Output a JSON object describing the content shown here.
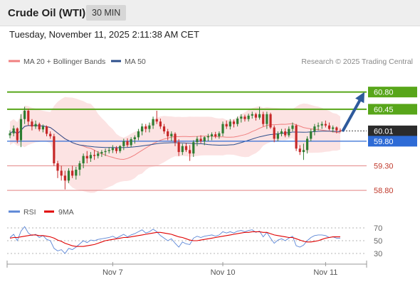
{
  "header": {
    "title": "Crude Oil (WTI)",
    "timeframe": "30 MIN"
  },
  "date_line": "Tuesday, November 11, 2025 2:11:38 AM CET",
  "legend": {
    "ma20_label": "MA 20 + Bollinger Bands",
    "ma50_label": "MA 50",
    "ma20_color": "#f08080",
    "ma50_color": "#2c4f8c",
    "credit": "Research © 2025 Trading Central"
  },
  "rsi_legend": {
    "rsi_label": "RSI",
    "ma_label": "9MA",
    "rsi_color": "#5b86d6",
    "ma_color": "#e00000"
  },
  "chart_data": [
    {
      "type": "candlestick",
      "ylim": [
        58.6,
        61.3
      ],
      "x_tick_labels": [
        "Nov 7",
        "Nov 10",
        "Nov 11"
      ],
      "last_price": 60.01,
      "colors": {
        "up": "#2e7d32",
        "down": "#c62828",
        "band": "#fcdede",
        "ma20": "#f08080",
        "ma50": "#2c4f8c"
      },
      "levels": [
        {
          "value": 60.8,
          "label": "60.80",
          "style": "resistance",
          "color": "#58a61a"
        },
        {
          "value": 60.45,
          "label": "60.45",
          "style": "resistance",
          "color": "#58a61a"
        },
        {
          "value": 60.01,
          "label": "60.01",
          "style": "last",
          "color": "#2b2b2b"
        },
        {
          "value": 59.8,
          "label": "59.80",
          "style": "pivot",
          "color": "#2e6bd6"
        },
        {
          "value": 59.3,
          "label": "59.30",
          "style": "support",
          "color": "#e89a9a"
        },
        {
          "value": 58.8,
          "label": "58.80",
          "style": "support",
          "color": "#e89a9a"
        }
      ],
      "arrow": {
        "from": 60.02,
        "to": 60.8,
        "color": "#2e5a9c"
      },
      "candles": [
        [
          59.92,
          60.02,
          59.86,
          59.96
        ],
        [
          59.96,
          60.12,
          59.9,
          60.06
        ],
        [
          60.06,
          60.08,
          59.76,
          59.82
        ],
        [
          59.82,
          60.35,
          59.68,
          60.25
        ],
        [
          60.25,
          60.5,
          60.15,
          60.42
        ],
        [
          60.42,
          60.46,
          60.12,
          60.2
        ],
        [
          60.2,
          60.25,
          60.02,
          60.1
        ],
        [
          60.1,
          60.22,
          60.05,
          60.15
        ],
        [
          60.15,
          60.18,
          60.0,
          60.04
        ],
        [
          60.04,
          60.14,
          59.98,
          60.1
        ],
        [
          60.1,
          60.12,
          59.9,
          59.95
        ],
        [
          59.95,
          60.0,
          59.85,
          59.9
        ],
        [
          59.9,
          59.95,
          59.3,
          59.35
        ],
        [
          59.35,
          59.4,
          59.05,
          59.2
        ],
        [
          59.2,
          59.3,
          59.0,
          59.1
        ],
        [
          59.1,
          59.2,
          58.82,
          59.0
        ],
        [
          59.0,
          59.25,
          58.95,
          59.2
        ],
        [
          59.2,
          59.3,
          59.05,
          59.1
        ],
        [
          59.1,
          59.28,
          59.02,
          59.22
        ],
        [
          59.22,
          59.4,
          59.1,
          59.35
        ],
        [
          59.35,
          59.55,
          59.25,
          59.5
        ],
        [
          59.5,
          59.6,
          59.35,
          59.45
        ],
        [
          59.45,
          59.58,
          59.38,
          59.52
        ],
        [
          59.52,
          59.62,
          59.42,
          59.5
        ],
        [
          59.5,
          59.6,
          59.45,
          59.55
        ],
        [
          59.55,
          59.62,
          59.48,
          59.58
        ],
        [
          59.58,
          59.65,
          59.5,
          59.6
        ],
        [
          59.6,
          59.68,
          59.55,
          59.62
        ],
        [
          59.62,
          59.72,
          59.56,
          59.66
        ],
        [
          59.66,
          59.7,
          59.55,
          59.6
        ],
        [
          59.6,
          59.72,
          59.56,
          59.7
        ],
        [
          59.7,
          59.85,
          59.62,
          59.8
        ],
        [
          59.8,
          59.86,
          59.68,
          59.72
        ],
        [
          59.72,
          59.88,
          59.68,
          59.84
        ],
        [
          59.84,
          59.92,
          59.75,
          59.88
        ],
        [
          59.88,
          60.05,
          59.82,
          60.0
        ],
        [
          60.0,
          60.16,
          59.92,
          60.1
        ],
        [
          60.1,
          60.15,
          59.98,
          60.05
        ],
        [
          60.05,
          60.18,
          59.98,
          60.12
        ],
        [
          60.12,
          60.3,
          60.05,
          60.25
        ],
        [
          60.25,
          60.42,
          60.15,
          60.2
        ],
        [
          60.2,
          60.26,
          60.05,
          60.1
        ],
        [
          60.1,
          60.15,
          59.95,
          60.0
        ],
        [
          60.0,
          60.05,
          59.82,
          59.9
        ],
        [
          59.9,
          60.0,
          59.8,
          59.95
        ],
        [
          59.95,
          59.98,
          59.7,
          59.78
        ],
        [
          59.78,
          59.84,
          59.5,
          59.58
        ],
        [
          59.58,
          59.75,
          59.52,
          59.7
        ],
        [
          59.7,
          59.76,
          59.58,
          59.62
        ],
        [
          59.62,
          59.72,
          59.4,
          59.55
        ],
        [
          59.55,
          59.82,
          59.48,
          59.78
        ],
        [
          59.78,
          59.9,
          59.7,
          59.85
        ],
        [
          59.85,
          59.92,
          59.76,
          59.8
        ],
        [
          59.8,
          59.9,
          59.72,
          59.88
        ],
        [
          59.88,
          59.95,
          59.8,
          59.9
        ],
        [
          59.9,
          59.98,
          59.82,
          59.94
        ],
        [
          59.94,
          59.99,
          59.86,
          59.9
        ],
        [
          59.9,
          60.0,
          59.85,
          59.96
        ],
        [
          59.96,
          60.2,
          59.9,
          60.15
        ],
        [
          60.15,
          60.22,
          60.05,
          60.1
        ],
        [
          60.1,
          60.25,
          60.04,
          60.2
        ],
        [
          60.2,
          60.24,
          60.08,
          60.15
        ],
        [
          60.15,
          60.3,
          60.1,
          60.26
        ],
        [
          60.26,
          60.35,
          60.18,
          60.3
        ],
        [
          60.3,
          60.34,
          60.2,
          60.25
        ],
        [
          60.25,
          60.36,
          60.2,
          60.32
        ],
        [
          60.32,
          60.4,
          60.26,
          60.35
        ],
        [
          60.35,
          60.38,
          60.22,
          60.28
        ],
        [
          60.28,
          60.5,
          60.24,
          60.35
        ],
        [
          60.35,
          60.4,
          60.1,
          60.15
        ],
        [
          60.15,
          60.4,
          60.05,
          60.35
        ],
        [
          60.35,
          60.38,
          60.05,
          60.08
        ],
        [
          60.08,
          60.12,
          59.78,
          59.85
        ],
        [
          59.85,
          60.0,
          59.8,
          59.95
        ],
        [
          59.95,
          60.05,
          59.9,
          60.0
        ],
        [
          60.0,
          60.06,
          59.88,
          59.92
        ],
        [
          59.92,
          60.1,
          59.88,
          60.05
        ],
        [
          60.05,
          60.18,
          60.0,
          60.12
        ],
        [
          60.12,
          60.15,
          59.6,
          59.65
        ],
        [
          59.65,
          59.72,
          59.52,
          59.58
        ],
        [
          59.58,
          59.75,
          59.42,
          59.62
        ],
        [
          59.62,
          59.9,
          59.55,
          59.85
        ],
        [
          59.85,
          60.05,
          59.8,
          60.0
        ],
        [
          60.0,
          60.15,
          59.92,
          60.1
        ],
        [
          60.1,
          60.18,
          60.02,
          60.12
        ],
        [
          60.12,
          60.2,
          60.05,
          60.15
        ],
        [
          60.15,
          60.22,
          60.08,
          60.12
        ],
        [
          60.12,
          60.18,
          60.02,
          60.05
        ],
        [
          60.05,
          60.12,
          59.98,
          60.08
        ],
        [
          60.08,
          60.1,
          59.96,
          60.02
        ],
        [
          60.02,
          60.06,
          59.98,
          60.01
        ]
      ]
    },
    {
      "type": "line",
      "indicator": "RSI",
      "ylim": [
        20,
        80
      ],
      "y_tick_labels": [
        "70",
        "50",
        "30"
      ],
      "y_ticks": [
        70,
        50,
        30
      ],
      "series": [
        {
          "name": "RSI",
          "values": [
            55,
            60,
            50,
            65,
            72,
            62,
            58,
            60,
            55,
            58,
            52,
            50,
            38,
            34,
            36,
            30,
            38,
            36,
            40,
            45,
            50,
            47,
            51,
            50,
            52,
            53,
            54,
            55,
            57,
            54,
            57,
            60,
            56,
            59,
            61,
            64,
            67,
            62,
            64,
            68,
            64,
            58,
            54,
            50,
            53,
            46,
            40,
            48,
            45,
            44,
            54,
            57,
            55,
            57,
            58,
            59,
            57,
            59,
            64,
            62,
            64,
            62,
            65,
            66,
            64,
            66,
            67,
            63,
            65,
            56,
            63,
            54,
            46,
            51,
            53,
            50,
            54,
            57,
            42,
            40,
            43,
            50,
            55,
            58,
            59,
            59,
            58,
            55,
            56,
            54,
            54
          ]
        },
        {
          "name": "9MA",
          "values": [
            54,
            55,
            55,
            56,
            57,
            58,
            59,
            59,
            58,
            58,
            57,
            56,
            54,
            51,
            49,
            46,
            44,
            42,
            41,
            41,
            41,
            42,
            43,
            44,
            46,
            48,
            50,
            51,
            52,
            53,
            54,
            55,
            55,
            56,
            57,
            58,
            59,
            60,
            61,
            62,
            63,
            63,
            62,
            61,
            60,
            58,
            56,
            55,
            53,
            51,
            50,
            50,
            51,
            52,
            53,
            54,
            55,
            56,
            57,
            58,
            59,
            60,
            61,
            62,
            63,
            63,
            64,
            64,
            64,
            63,
            63,
            61,
            59,
            58,
            57,
            56,
            55,
            55,
            53,
            51,
            49,
            48,
            48,
            49,
            50,
            52,
            54,
            55,
            56,
            56,
            56
          ]
        }
      ]
    }
  ]
}
